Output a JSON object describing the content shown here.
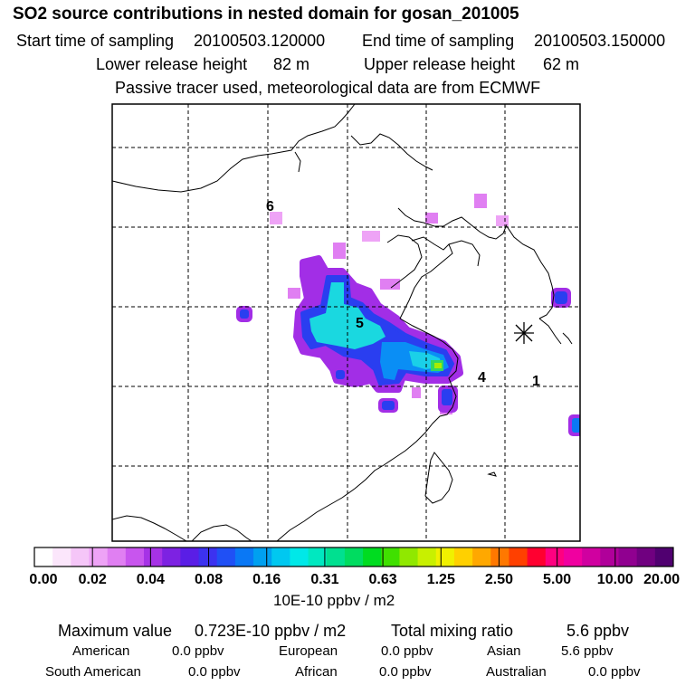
{
  "header": {
    "title": "SO2 source contributions in nested domain for gosan_201005",
    "start_label": "Start time of sampling",
    "start_value": "20100503.120000",
    "end_label": "End time of sampling",
    "end_value": "20100503.150000",
    "lower_label": "Lower release height",
    "lower_value": "82 m",
    "upper_label": "Upper release height",
    "upper_value": "62 m",
    "note": "Passive tracer used, meteorological data are from ECMWF"
  },
  "map": {
    "site_labels": [
      "6",
      "5",
      "4",
      "1"
    ],
    "receptor_icon": "asterisk-icon"
  },
  "colorbar": {
    "unit": "10E-10 ppbv / m2",
    "tick_labels": [
      "0.00",
      "0.02",
      "0.04",
      "0.08",
      "0.16",
      "0.31",
      "0.63",
      "1.25",
      "2.50",
      "5.00",
      "10.00",
      "20.00"
    ],
    "colors": [
      "#ffffff",
      "#fbe6fb",
      "#f5c6f8",
      "#eea3f6",
      "#e07ff2",
      "#c855ee",
      "#a632e6",
      "#7d22e2",
      "#5a1ee6",
      "#3c32f0",
      "#2050f5",
      "#0a78f5",
      "#00a0f0",
      "#00c8f0",
      "#00e8e8",
      "#00e8c0",
      "#00e090",
      "#00dc60",
      "#00dc20",
      "#40e000",
      "#90e800",
      "#c8f000",
      "#f0f000",
      "#ffd000",
      "#ffa800",
      "#ff7800",
      "#ff4000",
      "#ff0030",
      "#ff0080",
      "#f000a0",
      "#d000a0",
      "#b0009a",
      "#900090",
      "#700080",
      "#500070"
    ]
  },
  "stats": {
    "max_label": "Maximum value",
    "max_value": "0.723E-10 ppbv / m2",
    "total_label": "Total mixing ratio",
    "total_value": "5.6 ppbv",
    "american_label": "American",
    "american_value": "0.0 ppbv",
    "european_label": "European",
    "european_value": "0.0 ppbv",
    "asian_label": "Asian",
    "asian_value": "5.6 ppbv",
    "south_american_label": "South American",
    "south_american_value": "0.0 ppbv",
    "african_label": "African",
    "african_value": "0.0 ppbv",
    "australian_label": "Australian",
    "australian_value": "0.0 ppbv"
  }
}
